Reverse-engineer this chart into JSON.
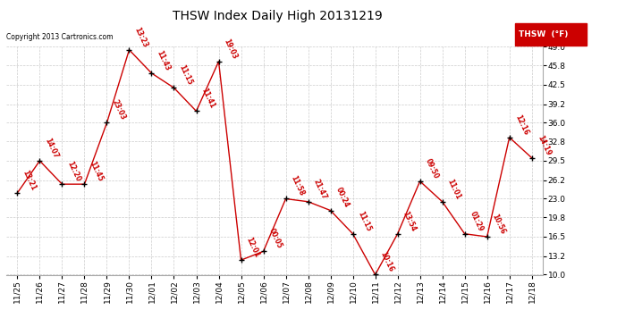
{
  "title": "THSW Index Daily High 20131219",
  "copyright": "Copyright 2013 Cartronics.com",
  "legend_label": "THSW  (°F)",
  "ylim": [
    10.0,
    49.0
  ],
  "yticks": [
    10.0,
    13.2,
    16.5,
    19.8,
    23.0,
    26.2,
    29.5,
    32.8,
    36.0,
    39.2,
    42.5,
    45.8,
    49.0
  ],
  "xlabels": [
    "11/25",
    "11/26",
    "11/27",
    "11/28",
    "11/29",
    "11/30",
    "12/01",
    "12/02",
    "12/03",
    "12/04",
    "12/05",
    "12/06",
    "12/07",
    "12/08",
    "12/09",
    "12/10",
    "12/11",
    "12/12",
    "12/13",
    "12/14",
    "12/15",
    "12/16",
    "12/17",
    "12/18"
  ],
  "x_indices": [
    0,
    1,
    2,
    3,
    4,
    5,
    6,
    7,
    8,
    9,
    10,
    11,
    12,
    13,
    14,
    15,
    16,
    17,
    18,
    19,
    20,
    21,
    22,
    23
  ],
  "y_values": [
    24.0,
    29.5,
    25.5,
    25.5,
    36.0,
    48.5,
    44.5,
    42.0,
    38.0,
    46.5,
    12.5,
    14.0,
    23.0,
    22.5,
    21.0,
    17.0,
    10.0,
    17.0,
    26.0,
    22.5,
    17.0,
    16.5,
    33.5,
    30.0
  ],
  "point_labels": [
    "13:21",
    "14:07",
    "12:20",
    "11:45",
    "23:03",
    "13:23",
    "11:43",
    "11:15",
    "11:41",
    "19:03",
    "12:01",
    "00:05",
    "11:58",
    "21:47",
    "00:24",
    "11:15",
    "10:16",
    "13:54",
    "09:50",
    "11:01",
    "01:29",
    "10:56",
    "12:16",
    "14:19"
  ],
  "line_color": "#cc0000",
  "marker_color": "#000000",
  "bg_color": "#ffffff",
  "grid_color": "#cccccc",
  "title_color": "#000000",
  "copyright_color": "#000000",
  "label_color": "#cc0000",
  "legend_bg": "#cc0000",
  "legend_text_color": "#ffffff",
  "title_fontsize": 10,
  "tick_fontsize": 6.5,
  "label_fontsize": 5.5,
  "copyright_fontsize": 5.5,
  "legend_fontsize": 6.5
}
